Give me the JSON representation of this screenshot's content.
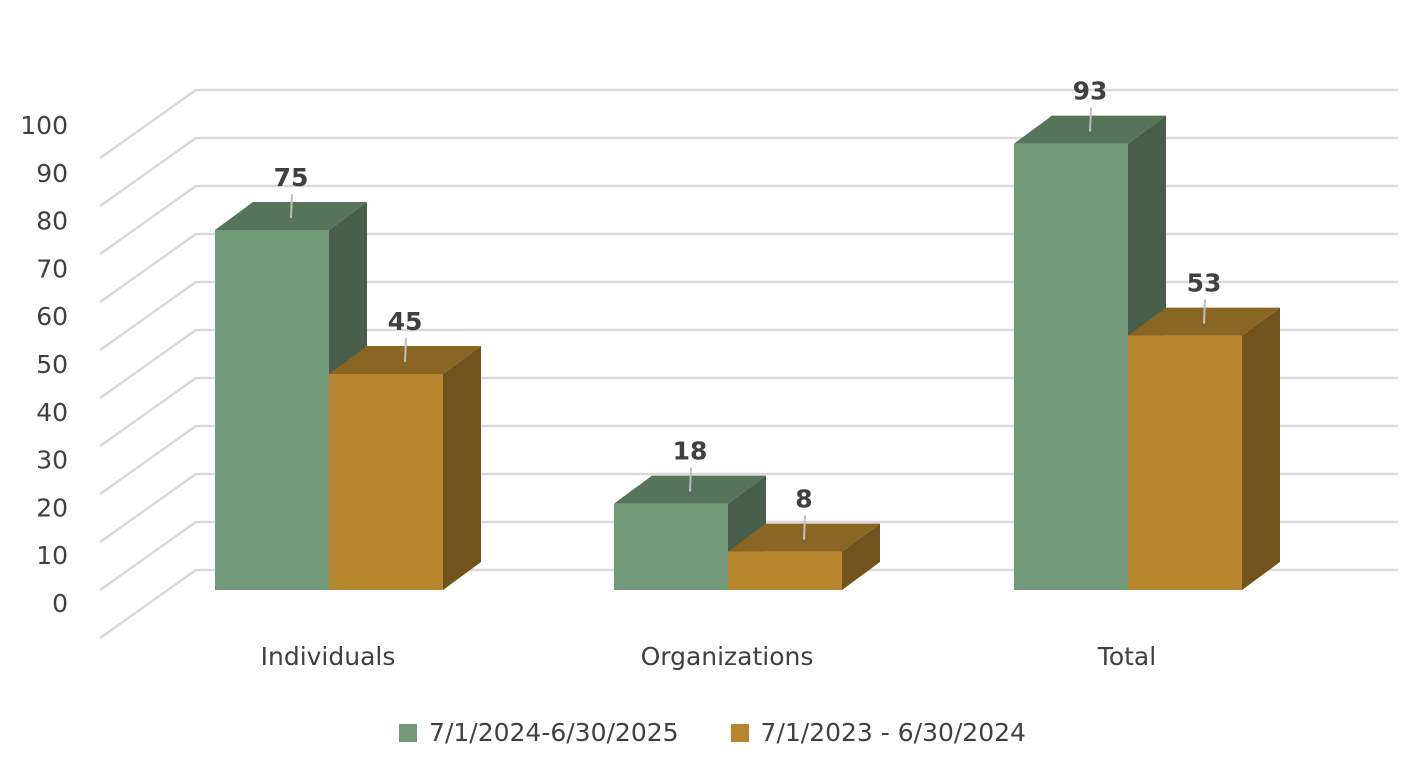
{
  "chart_data": {
    "type": "bar",
    "categories": [
      "Individuals",
      "Organizations",
      "Total"
    ],
    "series": [
      {
        "name": "7/1/2024-6/30/2025",
        "values": [
          75,
          18,
          93
        ],
        "color": "#739a78"
      },
      {
        "name": "7/1/2023 - 6/30/2024",
        "values": [
          45,
          8,
          53
        ],
        "color": "#b8862e"
      }
    ],
    "ylim": [
      0,
      100
    ],
    "yticks": [
      0,
      10,
      20,
      30,
      40,
      50,
      60,
      70,
      80,
      90,
      100
    ],
    "grid": true,
    "style": "3d-clustered-column",
    "legend": "bottom",
    "data_labels": true
  }
}
